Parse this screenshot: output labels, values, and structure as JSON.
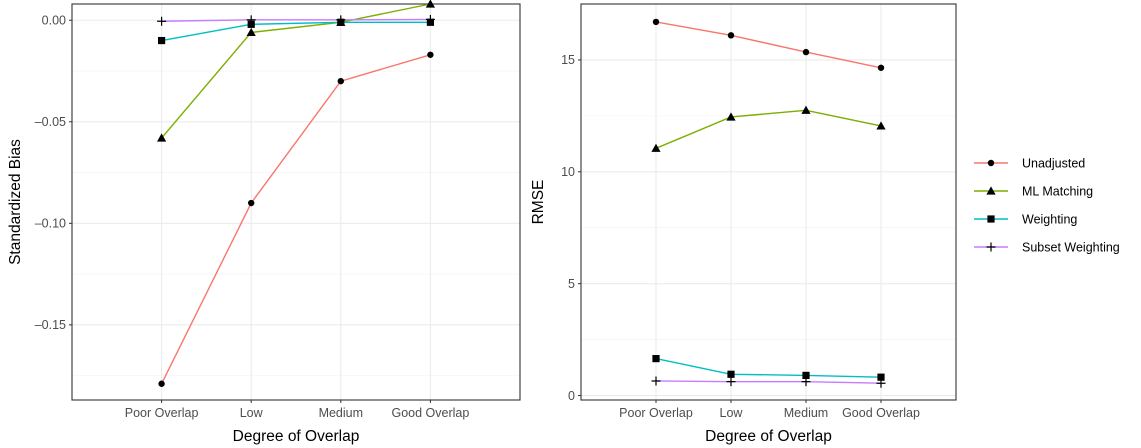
{
  "legend": {
    "position": "right",
    "items": [
      {
        "name": "Unadjusted",
        "color": "#f8766d",
        "shape": "circle"
      },
      {
        "name": "ML Matching",
        "color": "#7cae00",
        "shape": "triangle"
      },
      {
        "name": "Weighting",
        "color": "#00bfc4",
        "shape": "square"
      },
      {
        "name": "Subset Weighting",
        "color": "#c77cff",
        "shape": "plus"
      }
    ]
  },
  "chart_data": [
    {
      "type": "line",
      "title": "",
      "xlabel": "Degree of Overlap",
      "ylabel": "Standardized Bias",
      "categories": [
        "Poor Overlap",
        "Low",
        "Medium",
        "Good Overlap"
      ],
      "ylim": [
        -0.187,
        0.008
      ],
      "yticks": [
        0.0,
        -0.05,
        -0.1,
        -0.15
      ],
      "ytick_labels": [
        "0.00",
        "–0.05",
        "–0.10",
        "–0.15"
      ],
      "grid": true,
      "series": [
        {
          "name": "Unadjusted",
          "values": [
            -0.179,
            -0.09,
            -0.03,
            -0.017
          ]
        },
        {
          "name": "ML Matching",
          "values": [
            -0.058,
            -0.006,
            -0.001,
            0.008
          ]
        },
        {
          "name": "Weighting",
          "values": [
            -0.01,
            -0.002,
            -0.001,
            -0.001
          ]
        },
        {
          "name": "Subset Weighting",
          "values": [
            -0.0005,
            0.0002,
            0.0002,
            0.0004
          ]
        }
      ]
    },
    {
      "type": "line",
      "title": "",
      "xlabel": "Degree of Overlap",
      "ylabel": "RMSE",
      "categories": [
        "Poor Overlap",
        "Low",
        "Medium",
        "Good Overlap"
      ],
      "ylim": [
        -0.2,
        17.5
      ],
      "yticks": [
        0,
        5,
        10,
        15
      ],
      "ytick_labels": [
        "0",
        "5",
        "10",
        "15"
      ],
      "grid": true,
      "series": [
        {
          "name": "Unadjusted",
          "values": [
            16.7,
            16.1,
            15.35,
            14.65
          ]
        },
        {
          "name": "ML Matching",
          "values": [
            11.05,
            12.45,
            12.75,
            12.05
          ]
        },
        {
          "name": "Weighting",
          "values": [
            1.65,
            0.95,
            0.9,
            0.82
          ]
        },
        {
          "name": "Subset Weighting",
          "values": [
            0.65,
            0.62,
            0.62,
            0.55
          ]
        }
      ]
    }
  ]
}
